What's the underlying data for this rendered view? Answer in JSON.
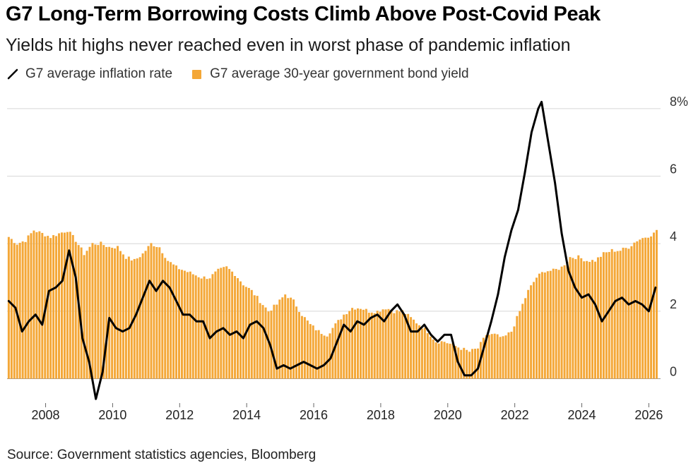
{
  "title": "G7 Long-Term Borrowing Costs Climb Above Post-Covid Peak",
  "subtitle": "Yields hit highs never reached even in worst phase of pandemic inflation",
  "source": "Source: Government statistics agencies, Bloomberg",
  "colors": {
    "inflation": "#000000",
    "yield": "#f4a737",
    "grid": "#d6d6d6"
  },
  "chart_data": {
    "type": "bar",
    "xlim": [
      2006.85,
      2026.35
    ],
    "ylim": [
      -0.7,
      8.5
    ],
    "grid": true,
    "legend_position": "top-left",
    "y_ticks": [
      {
        "value": 8,
        "label": "8%"
      },
      {
        "value": 6,
        "label": "6"
      },
      {
        "value": 4,
        "label": "4"
      },
      {
        "value": 2,
        "label": "2"
      },
      {
        "value": 0,
        "label": "0"
      }
    ],
    "x_ticks": [
      {
        "value": 2008,
        "label": "2008"
      },
      {
        "value": 2010,
        "label": "2010"
      },
      {
        "value": 2012,
        "label": "2012"
      },
      {
        "value": 2014,
        "label": "2014"
      },
      {
        "value": 2016,
        "label": "2016"
      },
      {
        "value": 2018,
        "label": "2018"
      },
      {
        "value": 2020,
        "label": "2020"
      },
      {
        "value": 2022,
        "label": "2022"
      },
      {
        "value": 2024,
        "label": "2024"
      },
      {
        "value": 2026,
        "label": "2026"
      }
    ],
    "series": [
      {
        "name": "G7 average 30-year government bond yield",
        "type": "bar",
        "x": [
          2006.9,
          2007.15,
          2007.4,
          2007.65,
          2007.9,
          2008.15,
          2008.4,
          2008.65,
          2008.9,
          2009.15,
          2009.4,
          2009.65,
          2009.9,
          2010.15,
          2010.4,
          2010.65,
          2010.9,
          2011.15,
          2011.4,
          2011.65,
          2011.9,
          2012.15,
          2012.4,
          2012.65,
          2012.9,
          2013.15,
          2013.4,
          2013.65,
          2013.9,
          2014.15,
          2014.4,
          2014.65,
          2014.9,
          2015.15,
          2015.4,
          2015.65,
          2015.9,
          2016.15,
          2016.4,
          2016.65,
          2016.9,
          2017.15,
          2017.4,
          2017.65,
          2017.9,
          2018.15,
          2018.4,
          2018.65,
          2018.9,
          2019.15,
          2019.4,
          2019.65,
          2019.9,
          2020.15,
          2020.4,
          2020.65,
          2020.9,
          2021.15,
          2021.4,
          2021.65,
          2021.9,
          2022.15,
          2022.4,
          2022.65,
          2022.9,
          2023.15,
          2023.4,
          2023.65,
          2023.9,
          2024.15,
          2024.4,
          2024.65,
          2024.9,
          2025.15,
          2025.4,
          2025.65,
          2025.9,
          2026.15,
          2026.3
        ],
        "values": [
          4.2,
          4.0,
          4.1,
          4.4,
          4.3,
          4.2,
          4.3,
          4.4,
          4.1,
          3.7,
          4.0,
          4.0,
          3.9,
          3.9,
          3.6,
          3.5,
          3.7,
          4.0,
          3.9,
          3.5,
          3.3,
          3.2,
          3.1,
          3.0,
          3.0,
          3.2,
          3.3,
          3.1,
          2.8,
          2.6,
          2.3,
          2.0,
          2.2,
          2.5,
          2.3,
          1.9,
          1.6,
          1.4,
          1.3,
          1.6,
          1.9,
          2.1,
          2.1,
          2.0,
          2.0,
          2.1,
          2.0,
          2.0,
          1.8,
          1.6,
          1.4,
          1.1,
          1.1,
          1.0,
          0.9,
          0.8,
          0.9,
          1.3,
          1.3,
          1.2,
          1.4,
          2.0,
          2.6,
          3.0,
          3.2,
          3.2,
          3.3,
          3.6,
          3.6,
          3.5,
          3.5,
          3.7,
          3.8,
          3.8,
          3.9,
          4.1,
          4.2,
          4.3,
          4.5
        ]
      },
      {
        "name": "G7 average inflation rate",
        "type": "line",
        "x": [
          2006.9,
          2007.1,
          2007.3,
          2007.5,
          2007.7,
          2007.9,
          2008.1,
          2008.3,
          2008.5,
          2008.7,
          2008.9,
          2009.1,
          2009.3,
          2009.5,
          2009.7,
          2009.9,
          2010.1,
          2010.3,
          2010.5,
          2010.7,
          2010.9,
          2011.1,
          2011.3,
          2011.5,
          2011.7,
          2011.9,
          2012.1,
          2012.3,
          2012.5,
          2012.7,
          2012.9,
          2013.1,
          2013.3,
          2013.5,
          2013.7,
          2013.9,
          2014.1,
          2014.3,
          2014.5,
          2014.7,
          2014.9,
          2015.1,
          2015.3,
          2015.5,
          2015.7,
          2015.9,
          2016.1,
          2016.3,
          2016.5,
          2016.7,
          2016.9,
          2017.1,
          2017.3,
          2017.5,
          2017.7,
          2017.9,
          2018.1,
          2018.3,
          2018.5,
          2018.7,
          2018.9,
          2019.1,
          2019.3,
          2019.5,
          2019.7,
          2019.9,
          2020.1,
          2020.3,
          2020.5,
          2020.7,
          2020.9,
          2021.1,
          2021.3,
          2021.5,
          2021.7,
          2021.9,
          2022.1,
          2022.3,
          2022.5,
          2022.7,
          2022.8,
          2023.0,
          2023.2,
          2023.4,
          2023.6,
          2023.8,
          2024.0,
          2024.2,
          2024.4,
          2024.6,
          2024.8,
          2025.0,
          2025.2,
          2025.4,
          2025.6,
          2025.8,
          2026.0,
          2026.2
        ],
        "values": [
          2.3,
          2.1,
          1.4,
          1.7,
          1.9,
          1.6,
          2.6,
          2.7,
          2.9,
          3.8,
          3.0,
          1.2,
          0.5,
          -0.6,
          0.2,
          1.8,
          1.5,
          1.4,
          1.5,
          1.9,
          2.4,
          2.9,
          2.6,
          2.9,
          2.7,
          2.3,
          1.9,
          1.9,
          1.7,
          1.7,
          1.2,
          1.4,
          1.5,
          1.3,
          1.4,
          1.2,
          1.6,
          1.7,
          1.5,
          1.0,
          0.3,
          0.4,
          0.3,
          0.4,
          0.5,
          0.4,
          0.3,
          0.4,
          0.6,
          1.1,
          1.6,
          1.4,
          1.7,
          1.6,
          1.8,
          1.9,
          1.7,
          2.0,
          2.2,
          1.9,
          1.4,
          1.4,
          1.6,
          1.3,
          1.1,
          1.3,
          1.3,
          0.5,
          0.1,
          0.1,
          0.3,
          1.0,
          1.7,
          2.5,
          3.6,
          4.4,
          5.0,
          6.1,
          7.3,
          8.0,
          8.2,
          7.0,
          5.8,
          4.3,
          3.2,
          2.7,
          2.4,
          2.5,
          2.2,
          1.7,
          2.0,
          2.3,
          2.4,
          2.2,
          2.3,
          2.2,
          2.0,
          2.7
        ]
      }
    ]
  }
}
